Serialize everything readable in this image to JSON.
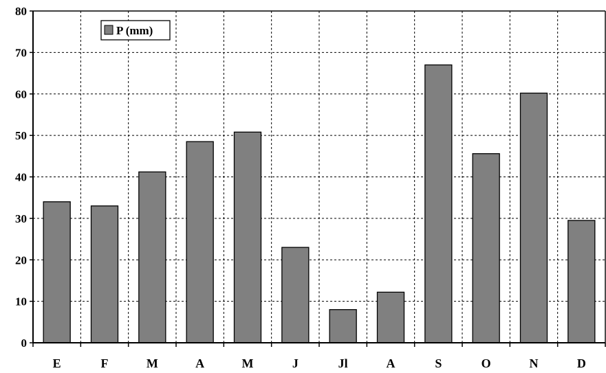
{
  "chart_data": {
    "type": "bar",
    "title": "",
    "xlabel": "",
    "ylabel": "",
    "categories": [
      "E",
      "F",
      "M",
      "A",
      "M",
      "J",
      "Jl",
      "A",
      "S",
      "O",
      "N",
      "D"
    ],
    "series": [
      {
        "name": "P (mm)",
        "values": [
          34.0,
          33.0,
          41.2,
          48.5,
          50.8,
          23.0,
          8.0,
          12.2,
          67.0,
          45.6,
          60.2,
          29.5
        ]
      }
    ],
    "ylim": [
      0,
      80
    ],
    "yticks": [
      0,
      10,
      20,
      30,
      40,
      50,
      60,
      70,
      80
    ],
    "grid": true,
    "legend_position": "top-left",
    "colors": {
      "bar_fill": "#808080",
      "bar_stroke": "#000000",
      "grid": "#000000"
    }
  }
}
